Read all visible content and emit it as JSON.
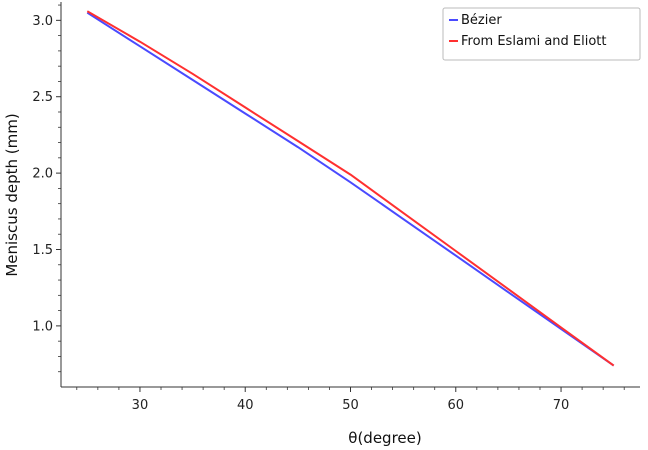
{
  "chart_data": {
    "type": "line",
    "title": "",
    "xlabel": "θ(degree)",
    "ylabel": "Meniscus depth (mm)",
    "xlim": [
      22.5,
      77.5
    ],
    "ylim": [
      0.6,
      3.12
    ],
    "xticks": [
      30,
      40,
      50,
      60,
      70
    ],
    "yticks": [
      1.0,
      1.5,
      2.0,
      2.5,
      3.0
    ],
    "xtick_labels": [
      "30",
      "40",
      "50",
      "60",
      "70"
    ],
    "ytick_labels": [
      "1.0",
      "1.5",
      "2.0",
      "2.5",
      "3.0"
    ],
    "legend_position": "top-right",
    "grid": false,
    "series": [
      {
        "name": "Bézier",
        "color": "#4a4aff",
        "x": [
          25,
          30,
          35,
          40,
          45,
          50,
          55,
          60,
          65,
          70,
          75
        ],
        "y": [
          3.05,
          2.83,
          2.61,
          2.39,
          2.17,
          1.94,
          1.7,
          1.46,
          1.22,
          0.98,
          0.74
        ]
      },
      {
        "name": "From Eslami and Eliott",
        "color": "#ff3030",
        "x": [
          25,
          30,
          35,
          40,
          45,
          50,
          55,
          60,
          65,
          70,
          75
        ],
        "y": [
          3.06,
          2.86,
          2.65,
          2.43,
          2.21,
          1.99,
          1.74,
          1.49,
          1.24,
          0.99,
          0.74
        ]
      }
    ]
  }
}
